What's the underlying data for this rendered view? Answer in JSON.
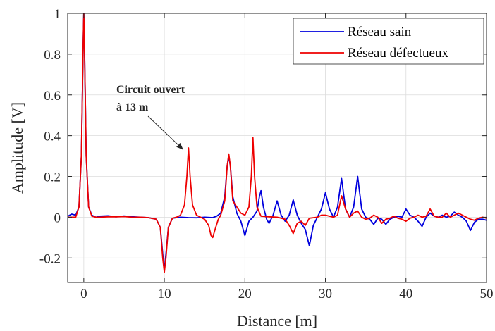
{
  "chart_data": {
    "type": "line",
    "xlabel": "Distance [m]",
    "ylabel": "Amplitude [V]",
    "xlim": [
      -2,
      50
    ],
    "ylim": [
      -0.32,
      1
    ],
    "xticks": [
      0,
      10,
      20,
      30,
      40,
      50
    ],
    "yticks": [
      -0.2,
      0,
      0.2,
      0.4,
      0.6,
      0.8,
      1
    ],
    "ytick_labels": [
      "-0.2",
      "0",
      "0.2",
      "0.4",
      "0.6",
      "0.8",
      "1"
    ],
    "grid": true,
    "legend_position": "top-right",
    "annotation": {
      "lines": [
        "Circuit ouvert",
        "à 13 m"
      ],
      "target": [
        13,
        0.34
      ]
    },
    "series": [
      {
        "name": "Réseau sain",
        "color": "#0000dd",
        "x": [
          -2,
          -1.5,
          -1,
          -0.6,
          -0.3,
          -0.1,
          0,
          0.1,
          0.3,
          0.6,
          1,
          1.5,
          2,
          3,
          4,
          5,
          6,
          7,
          8,
          9,
          9.5,
          9.8,
          10,
          10.2,
          10.5,
          11,
          12,
          13,
          14,
          15,
          16,
          16.5,
          17,
          17.5,
          17.8,
          18,
          18.2,
          18.5,
          19,
          19.5,
          20,
          20.5,
          21,
          21.5,
          21.8,
          22,
          22.3,
          22.7,
          23,
          23.5,
          24,
          24.5,
          25,
          25.5,
          26,
          26.5,
          27,
          27.5,
          28,
          28.5,
          29,
          29.5,
          30,
          30.5,
          31,
          31.5,
          32,
          32.5,
          33,
          33.5,
          34,
          34.5,
          35,
          35.5,
          36,
          36.5,
          37,
          37.5,
          38,
          38.5,
          39,
          39.5,
          40,
          40.5,
          41,
          41.5,
          42,
          42.5,
          43,
          43.5,
          44,
          44.5,
          45,
          45.5,
          46,
          46.5,
          47,
          47.5,
          48,
          48.5,
          49,
          49.5,
          50
        ],
        "y": [
          0.005,
          0.015,
          0.01,
          0.05,
          0.3,
          0.8,
          1.0,
          0.8,
          0.3,
          0.05,
          0.01,
          0.0,
          0.005,
          0.007,
          0.002,
          0.006,
          0.002,
          0.0,
          -0.002,
          -0.01,
          -0.05,
          -0.18,
          -0.26,
          -0.18,
          -0.05,
          -0.005,
          0.0,
          -0.002,
          -0.003,
          0.0,
          -0.002,
          0.005,
          0.02,
          0.1,
          0.25,
          0.3,
          0.25,
          0.1,
          0.02,
          -0.02,
          -0.09,
          -0.02,
          0.0,
          0.03,
          0.1,
          0.13,
          0.05,
          -0.01,
          -0.03,
          0.01,
          0.08,
          0.01,
          -0.02,
          0.01,
          0.085,
          0.01,
          -0.03,
          -0.06,
          -0.14,
          -0.04,
          0.0,
          0.04,
          0.12,
          0.04,
          0.0,
          0.05,
          0.19,
          0.04,
          0.0,
          0.05,
          0.2,
          0.04,
          0.0,
          -0.01,
          -0.035,
          -0.005,
          -0.01,
          -0.035,
          -0.01,
          0.0,
          0.005,
          0.0,
          0.04,
          0.01,
          0.0,
          -0.02,
          -0.045,
          0.0,
          0.02,
          0.005,
          0.0,
          0.01,
          0.0,
          0.005,
          0.025,
          0.01,
          0.0,
          -0.02,
          -0.065,
          -0.025,
          -0.01,
          -0.01,
          -0.015
        ]
      },
      {
        "name": "Réseau défectueux",
        "color": "#ee0000",
        "x": [
          -2,
          -1.5,
          -1,
          -0.6,
          -0.3,
          -0.1,
          0,
          0.1,
          0.3,
          0.6,
          1,
          1.5,
          2,
          3,
          4,
          5,
          6,
          7,
          8,
          9,
          9.5,
          9.8,
          10,
          10.2,
          10.5,
          11,
          11.5,
          12,
          12.5,
          12.8,
          13,
          13.2,
          13.5,
          14,
          14.5,
          15,
          15.5,
          15.8,
          16,
          16.3,
          16.7,
          17,
          17.5,
          17.8,
          18,
          18.2,
          18.5,
          19,
          19.5,
          20,
          20.5,
          20.8,
          21,
          21.2,
          21.5,
          22,
          23,
          24,
          25,
          25.5,
          26,
          26.5,
          27,
          27.5,
          28,
          29,
          29.5,
          30,
          30.5,
          31,
          31.5,
          32,
          32.5,
          33,
          33.5,
          34,
          34.5,
          35,
          35.5,
          36,
          36.5,
          37,
          37.5,
          38,
          38.5,
          39,
          39.5,
          40,
          40.5,
          41,
          41.5,
          42,
          42.5,
          43,
          43.5,
          44,
          44.5,
          45,
          45.5,
          46,
          46.5,
          47,
          47.5,
          48,
          48.5,
          49,
          49.5,
          50
        ],
        "y": [
          0.0,
          0.0,
          0.0,
          0.05,
          0.3,
          0.8,
          1.0,
          0.8,
          0.3,
          0.05,
          0.005,
          0.0,
          0.0,
          0.002,
          0.002,
          0.003,
          0.0,
          0.0,
          -0.002,
          -0.01,
          -0.05,
          -0.2,
          -0.27,
          -0.2,
          -0.05,
          -0.005,
          0.0,
          0.01,
          0.06,
          0.2,
          0.34,
          0.2,
          0.06,
          0.01,
          0.0,
          -0.01,
          -0.04,
          -0.09,
          -0.1,
          -0.06,
          -0.01,
          0.01,
          0.08,
          0.25,
          0.31,
          0.25,
          0.08,
          0.05,
          0.02,
          0.01,
          0.05,
          0.2,
          0.39,
          0.2,
          0.05,
          0.005,
          0.002,
          0.0,
          -0.01,
          -0.04,
          -0.08,
          -0.03,
          -0.02,
          -0.04,
          -0.005,
          0.0,
          0.01,
          0.01,
          0.005,
          0.0,
          0.01,
          0.105,
          0.04,
          0.0,
          0.02,
          0.03,
          0.0,
          -0.01,
          -0.005,
          0.01,
          0.0,
          -0.03,
          -0.01,
          -0.005,
          0.005,
          -0.005,
          -0.01,
          -0.02,
          -0.005,
          0.0,
          0.01,
          0.0,
          0.005,
          0.04,
          0.005,
          0.0,
          0.0,
          0.02,
          0.0,
          0.01,
          0.02,
          0.01,
          0.0,
          -0.01,
          -0.015,
          -0.005,
          0.0,
          -0.005
        ]
      }
    ]
  }
}
